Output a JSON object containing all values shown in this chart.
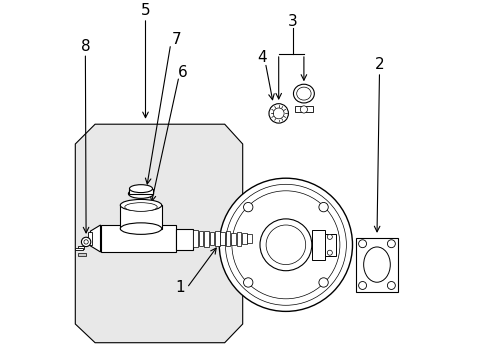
{
  "bg_color": "#ffffff",
  "line_color": "#000000",
  "part_fill": "#e8e8e8",
  "box_fill": "#e8e8e8",
  "label_fontsize": 11,
  "arrow_color": "#000000"
}
